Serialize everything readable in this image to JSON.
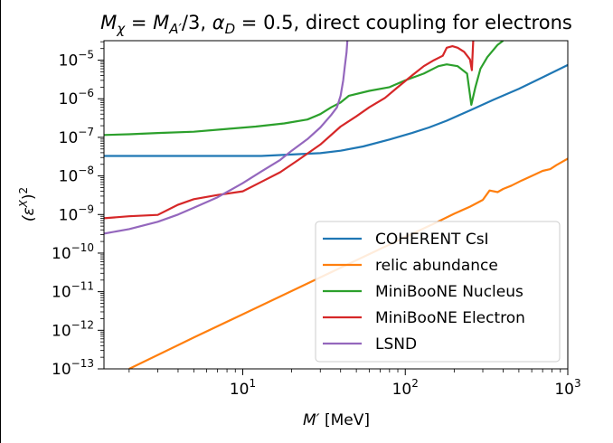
{
  "chart_data": {
    "type": "line",
    "title": "M_χ = M_A′/3, α_D = 0.5, direct coupling for electrons",
    "title_parts": {
      "m": "M",
      "chi_sub": "χ",
      "eq": " = ",
      "ma": "M",
      "a_sub": "A′",
      "div3": "/3, ",
      "alpha": "α",
      "d_sub": "D",
      "rest": " = 0.5, direct coupling for electrons"
    },
    "xlabel": "M′ [MeV]",
    "xlabel_parts": {
      "main": "M",
      "prime": "′",
      "unit": " [MeV]"
    },
    "ylabel": "(ε^X)^2",
    "ylabel_parts": {
      "open": "(ε",
      "sup_x": "X",
      "close": ")",
      "sup_2": "2"
    },
    "x_scale": "log",
    "y_scale": "log",
    "xlim": [
      1.4,
      1000
    ],
    "ylim": [
      1e-13,
      3.2e-05
    ],
    "x_ticks": [
      {
        "value": 10,
        "base": "10",
        "exp": "1"
      },
      {
        "value": 100,
        "base": "10",
        "exp": "2"
      },
      {
        "value": 1000,
        "base": "10",
        "exp": "3"
      }
    ],
    "y_ticks": [
      {
        "value": 1e-13,
        "base": "10",
        "exp": "−13"
      },
      {
        "value": 1e-12,
        "base": "10",
        "exp": "−12"
      },
      {
        "value": 1e-11,
        "base": "10",
        "exp": "−11"
      },
      {
        "value": 1e-10,
        "base": "10",
        "exp": "−10"
      },
      {
        "value": 1e-09,
        "base": "10",
        "exp": "−9"
      },
      {
        "value": 1e-08,
        "base": "10",
        "exp": "−8"
      },
      {
        "value": 1e-07,
        "base": "10",
        "exp": "−7"
      },
      {
        "value": 1e-06,
        "base": "10",
        "exp": "−6"
      },
      {
        "value": 1e-05,
        "base": "10",
        "exp": "−5"
      }
    ],
    "grid": false,
    "legend_position": "lower-right",
    "series": [
      {
        "name": "COHERENT CsI",
        "color": "#1f77b4",
        "points": [
          [
            1.4,
            3.3e-08
          ],
          [
            3,
            3.3e-08
          ],
          [
            6,
            3.3e-08
          ],
          [
            10,
            3.3e-08
          ],
          [
            13,
            3.3e-08
          ],
          [
            20,
            3.6e-08
          ],
          [
            30,
            3.9e-08
          ],
          [
            40,
            4.5e-08
          ],
          [
            55,
            5.8e-08
          ],
          [
            80,
            8.8e-08
          ],
          [
            110,
            1.3e-07
          ],
          [
            140,
            1.8e-07
          ],
          [
            180,
            2.7e-07
          ],
          [
            250,
            5e-07
          ],
          [
            350,
            9.5e-07
          ],
          [
            500,
            1.8e-06
          ],
          [
            700,
            3.6e-06
          ],
          [
            1000,
            7.5e-06
          ]
        ]
      },
      {
        "name": "relic abundance",
        "color": "#ff7f0e",
        "points": [
          [
            2,
            1e-13
          ],
          [
            5,
            6.5e-13
          ],
          [
            10,
            2.6e-12
          ],
          [
            20,
            1.04e-11
          ],
          [
            50,
            6.5e-11
          ],
          [
            100,
            2.6e-10
          ],
          [
            150,
            5.8e-10
          ],
          [
            200,
            1.05e-09
          ],
          [
            250,
            1.6e-09
          ],
          [
            300,
            2.4e-09
          ],
          [
            330,
            4.2e-09
          ],
          [
            370,
            3.8e-09
          ],
          [
            400,
            4.6e-09
          ],
          [
            450,
            5.6e-09
          ],
          [
            520,
            7.6e-09
          ],
          [
            600,
            1e-08
          ],
          [
            700,
            1.35e-08
          ],
          [
            780,
            1.5e-08
          ],
          [
            850,
            1.9e-08
          ],
          [
            1000,
            2.8e-08
          ]
        ]
      },
      {
        "name": "MiniBooNE Nucleus",
        "color": "#2ca02c",
        "points": [
          [
            1.4,
            1.15e-07
          ],
          [
            2,
            1.2e-07
          ],
          [
            3,
            1.3e-07
          ],
          [
            5,
            1.4e-07
          ],
          [
            8,
            1.65e-07
          ],
          [
            12,
            1.9e-07
          ],
          [
            18,
            2.3e-07
          ],
          [
            25,
            2.9e-07
          ],
          [
            30,
            4e-07
          ],
          [
            35,
            6e-07
          ],
          [
            40,
            8e-07
          ],
          [
            45,
            1.2e-06
          ],
          [
            60,
            1.6e-06
          ],
          [
            80,
            2e-06
          ],
          [
            100,
            3e-06
          ],
          [
            130,
            4.5e-06
          ],
          [
            160,
            7e-06
          ],
          [
            180,
            7.8e-06
          ],
          [
            210,
            7e-06
          ],
          [
            240,
            4.5e-06
          ],
          [
            255,
            7e-07
          ],
          [
            270,
            2e-06
          ],
          [
            290,
            6e-06
          ],
          [
            320,
            1.2e-05
          ],
          [
            370,
            2.5e-05
          ],
          [
            400,
            3.2e-05
          ]
        ]
      },
      {
        "name": "MiniBooNE Electron",
        "color": "#d62728",
        "points": [
          [
            1.4,
            8e-10
          ],
          [
            2,
            9e-10
          ],
          [
            3,
            9.8e-10
          ],
          [
            4,
            1.8e-09
          ],
          [
            5,
            2.5e-09
          ],
          [
            7,
            3.2e-09
          ],
          [
            10,
            4e-09
          ],
          [
            13,
            7e-09
          ],
          [
            17,
            1.25e-08
          ],
          [
            22,
            2.6e-08
          ],
          [
            30,
            6.5e-08
          ],
          [
            40,
            1.9e-07
          ],
          [
            50,
            3.5e-07
          ],
          [
            60,
            6e-07
          ],
          [
            75,
            1.05e-06
          ],
          [
            90,
            2e-06
          ],
          [
            110,
            4e-06
          ],
          [
            130,
            7e-06
          ],
          [
            150,
            1e-05
          ],
          [
            170,
            1.3e-05
          ],
          [
            180,
            2.1e-05
          ],
          [
            195,
            2.3e-05
          ],
          [
            210,
            2.1e-05
          ],
          [
            230,
            1.65e-05
          ],
          [
            250,
            1.05e-05
          ],
          [
            257,
            5.5e-06
          ],
          [
            262,
            3.2e-05
          ]
        ]
      },
      {
        "name": "LSND",
        "color": "#9467bd",
        "points": [
          [
            1.4,
            3.2e-10
          ],
          [
            2,
            4.2e-10
          ],
          [
            3,
            6.5e-10
          ],
          [
            4,
            1e-09
          ],
          [
            5,
            1.5e-09
          ],
          [
            7,
            2.8e-09
          ],
          [
            10,
            6.5e-09
          ],
          [
            13,
            1.3e-08
          ],
          [
            17,
            2.6e-08
          ],
          [
            20,
            4.5e-08
          ],
          [
            25,
            9e-08
          ],
          [
            30,
            1.8e-07
          ],
          [
            35,
            3.8e-07
          ],
          [
            38,
            6e-07
          ],
          [
            40,
            1.2e-06
          ],
          [
            41.5,
            3e-06
          ],
          [
            42.5,
            7e-06
          ],
          [
            43.5,
            1.6e-05
          ],
          [
            44,
            3.2e-05
          ]
        ]
      }
    ]
  }
}
